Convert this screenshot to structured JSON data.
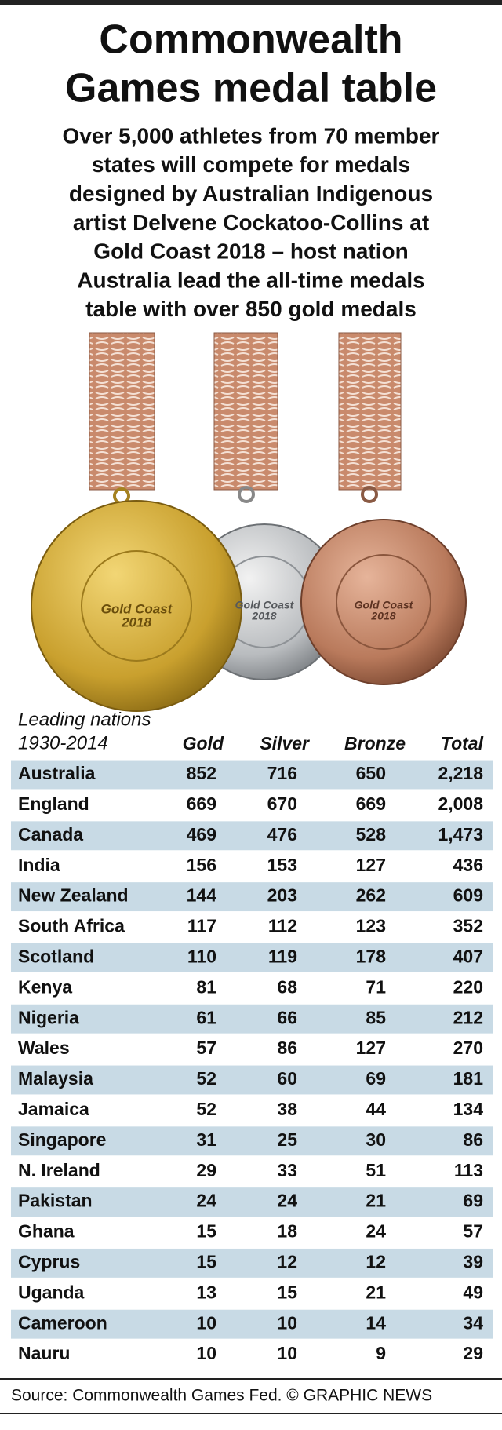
{
  "header": {
    "title": [
      "Commonwealth",
      "Games medal table"
    ],
    "subtitle": [
      "Over 5,000 athletes from 70 member",
      "states will compete for medals",
      "designed by Australian Indigenous",
      "artist Delvene Cockatoo-Collins at",
      "Gold Coast 2018 – host nation",
      "Australia lead the all-time medals",
      "table with over 850 gold medals"
    ]
  },
  "medals": {
    "label": [
      "Gold Coast",
      "2018"
    ]
  },
  "table": {
    "caption": [
      "Leading nations",
      "1930-2014"
    ],
    "columns": [
      "Gold",
      "Silver",
      "Bronze",
      "Total"
    ],
    "rows": [
      [
        "Australia",
        "852",
        "716",
        "650",
        "2,218"
      ],
      [
        "England",
        "669",
        "670",
        "669",
        "2,008"
      ],
      [
        "Canada",
        "469",
        "476",
        "528",
        "1,473"
      ],
      [
        "India",
        "156",
        "153",
        "127",
        "436"
      ],
      [
        "New Zealand",
        "144",
        "203",
        "262",
        "609"
      ],
      [
        "South Africa",
        "117",
        "112",
        "123",
        "352"
      ],
      [
        "Scotland",
        "110",
        "119",
        "178",
        "407"
      ],
      [
        "Kenya",
        "81",
        "68",
        "71",
        "220"
      ],
      [
        "Nigeria",
        "61",
        "66",
        "85",
        "212"
      ],
      [
        "Wales",
        "57",
        "86",
        "127",
        "270"
      ],
      [
        "Malaysia",
        "52",
        "60",
        "69",
        "181"
      ],
      [
        "Jamaica",
        "52",
        "38",
        "44",
        "134"
      ],
      [
        "Singapore",
        "31",
        "25",
        "30",
        "86"
      ],
      [
        "N. Ireland",
        "29",
        "33",
        "51",
        "113"
      ],
      [
        "Pakistan",
        "24",
        "24",
        "21",
        "69"
      ],
      [
        "Ghana",
        "15",
        "18",
        "24",
        "57"
      ],
      [
        "Cyprus",
        "15",
        "12",
        "12",
        "39"
      ],
      [
        "Uganda",
        "13",
        "15",
        "21",
        "49"
      ],
      [
        "Cameroon",
        "10",
        "10",
        "14",
        "34"
      ],
      [
        "Nauru",
        "10",
        "10",
        "9",
        "29"
      ]
    ]
  },
  "footer": {
    "source": "Source: Commonwealth Games Fed. © GRAPHIC NEWS"
  }
}
